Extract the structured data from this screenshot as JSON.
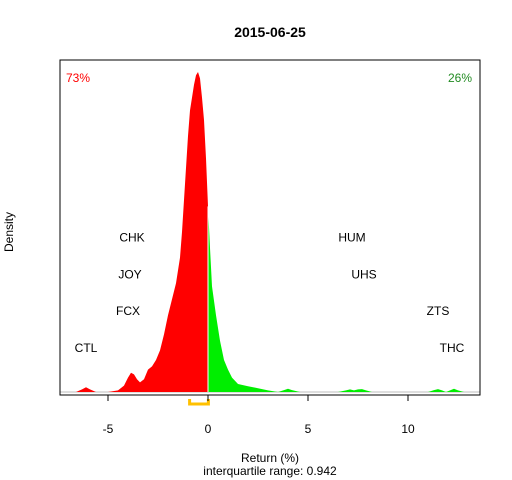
{
  "chart_data": {
    "type": "area",
    "title": "2015-06-25",
    "xlabel": "Return (%)",
    "ylabel": "Density",
    "subtitle": "interquartile range: 0.942",
    "xlim": [
      -7.4,
      13.6
    ],
    "ylim": [
      0,
      1.04
    ],
    "xticks": [
      -5,
      0,
      5,
      10
    ],
    "xtick_labels": [
      "-5",
      "0",
      "5",
      "10"
    ],
    "percent_negative": "73%",
    "percent_positive": "26%",
    "colors": {
      "negative": "#ff0000",
      "positive": "#00ee00",
      "iqr": "#ffc000",
      "axis": "#000000",
      "baseline": "#bebebe"
    },
    "iqr": [
      -0.92,
      0.02
    ],
    "density": {
      "x": [
        -6.6,
        -6.3,
        -6.1,
        -5.9,
        -5.6,
        -5.0,
        -4.5,
        -4.2,
        -4.0,
        -3.85,
        -3.7,
        -3.55,
        -3.4,
        -3.2,
        -3.0,
        -2.8,
        -2.6,
        -2.4,
        -2.2,
        -2.0,
        -1.8,
        -1.6,
        -1.4,
        -1.3,
        -1.2,
        -1.1,
        -1.0,
        -0.9,
        -0.8,
        -0.7,
        -0.6,
        -0.5,
        -0.4,
        -0.3,
        -0.2,
        -0.1,
        0.0,
        0.1,
        0.2,
        0.4,
        0.6,
        0.8,
        1.0,
        1.2,
        1.5,
        2.0,
        2.5,
        3.0,
        3.5,
        3.8,
        4.0,
        4.2,
        4.6,
        5.5,
        6.5,
        6.9,
        7.1,
        7.3,
        7.5,
        7.7,
        7.9,
        8.2,
        9.0,
        10.0,
        11.0,
        11.3,
        11.5,
        11.7,
        11.9,
        12.1,
        12.3,
        12.5,
        12.8,
        13.3
      ],
      "y": [
        0.0,
        0.008,
        0.015,
        0.008,
        0.0,
        0.0,
        0.005,
        0.02,
        0.045,
        0.06,
        0.055,
        0.04,
        0.03,
        0.04,
        0.07,
        0.08,
        0.1,
        0.13,
        0.18,
        0.24,
        0.29,
        0.34,
        0.42,
        0.5,
        0.6,
        0.7,
        0.8,
        0.88,
        0.92,
        0.96,
        0.99,
        1.0,
        0.98,
        0.92,
        0.85,
        0.73,
        0.58,
        0.45,
        0.33,
        0.24,
        0.16,
        0.1,
        0.07,
        0.045,
        0.025,
        0.018,
        0.012,
        0.005,
        0.0,
        0.006,
        0.01,
        0.006,
        0.0,
        0.0,
        0.0,
        0.005,
        0.008,
        0.005,
        0.008,
        0.009,
        0.005,
        0.0,
        0.0,
        0.0,
        0.0,
        0.006,
        0.009,
        0.005,
        0.0,
        0.005,
        0.01,
        0.005,
        0.0,
        0.0
      ]
    },
    "annotations": [
      {
        "text": "CTL",
        "x": -6.1,
        "y": 0.125
      },
      {
        "text": "FCX",
        "x": -4.0,
        "y": 0.24
      },
      {
        "text": "JOY",
        "x": -3.9,
        "y": 0.355
      },
      {
        "text": "CHK",
        "x": -3.8,
        "y": 0.47
      },
      {
        "text": "HUM",
        "x": 7.2,
        "y": 0.47
      },
      {
        "text": "UHS",
        "x": 7.8,
        "y": 0.355
      },
      {
        "text": "ZTS",
        "x": 11.5,
        "y": 0.24
      },
      {
        "text": "THC",
        "x": 12.2,
        "y": 0.125
      }
    ]
  }
}
